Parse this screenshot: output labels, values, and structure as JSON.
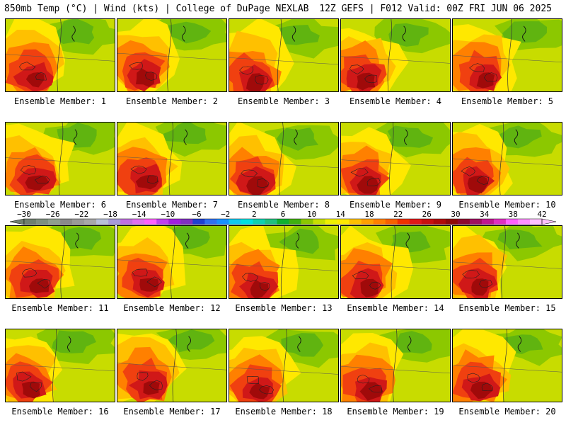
{
  "header": {
    "left": "850mb Temp (°C) | Wind (kts) | College of DuPage NEXLAB",
    "right": "12Z GEFS | F012 Valid: 00Z FRI JUN 06 2025"
  },
  "members": [
    {
      "label": "Ensemble Member: 1",
      "n": 1
    },
    {
      "label": "Ensemble Member: 2",
      "n": 2
    },
    {
      "label": "Ensemble Member: 3",
      "n": 3
    },
    {
      "label": "Ensemble Member: 4",
      "n": 4
    },
    {
      "label": "Ensemble Member: 5",
      "n": 5
    },
    {
      "label": "Ensemble Member: 6",
      "n": 6
    },
    {
      "label": "Ensemble Member: 7",
      "n": 7
    },
    {
      "label": "Ensemble Member: 8",
      "n": 8
    },
    {
      "label": "Ensemble Member: 9",
      "n": 9
    },
    {
      "label": "Ensemble Member: 10",
      "n": 10
    },
    {
      "label": "Ensemble Member: 11",
      "n": 11
    },
    {
      "label": "Ensemble Member: 12",
      "n": 12
    },
    {
      "label": "Ensemble Member: 13",
      "n": 13
    },
    {
      "label": "Ensemble Member: 14",
      "n": 14
    },
    {
      "label": "Ensemble Member: 15",
      "n": 15
    },
    {
      "label": "Ensemble Member: 16",
      "n": 16
    },
    {
      "label": "Ensemble Member: 17",
      "n": 17
    },
    {
      "label": "Ensemble Member: 18",
      "n": 18
    },
    {
      "label": "Ensemble Member: 19",
      "n": 19
    },
    {
      "label": "Ensemble Member: 20",
      "n": 20
    }
  ],
  "colorbar": {
    "ticks": [
      "−30",
      "−26",
      "−22",
      "−18",
      "−14",
      "−10",
      "−6",
      "−2",
      "2",
      "6",
      "10",
      "14",
      "18",
      "22",
      "26",
      "30",
      "34",
      "38",
      "42"
    ],
    "colors": [
      "#6f7f6f",
      "#7f8f7f",
      "#8f9f8f",
      "#8a8a8a",
      "#9a9a9a",
      "#a8a8a8",
      "#b8c0d8",
      "#a89ad8",
      "#c070e0",
      "#e070f0",
      "#ff60ff",
      "#c040f0",
      "#a020e0",
      "#8030c0",
      "#2040d0",
      "#3070f0",
      "#1890ff",
      "#10c8f0",
      "#00e0e0",
      "#10d0b0",
      "#20c080",
      "#10b030",
      "#40b010",
      "#8cc800",
      "#c8e000",
      "#f0f000",
      "#ffe800",
      "#ffc000",
      "#ffa000",
      "#ff8000",
      "#f86000",
      "#f03000",
      "#e01818",
      "#c81010",
      "#b00a0a",
      "#900808",
      "#900830",
      "#a01060",
      "#c01890",
      "#e030c0",
      "#ff60ff",
      "#ff90ff",
      "#ffc0ff"
    ]
  }
}
